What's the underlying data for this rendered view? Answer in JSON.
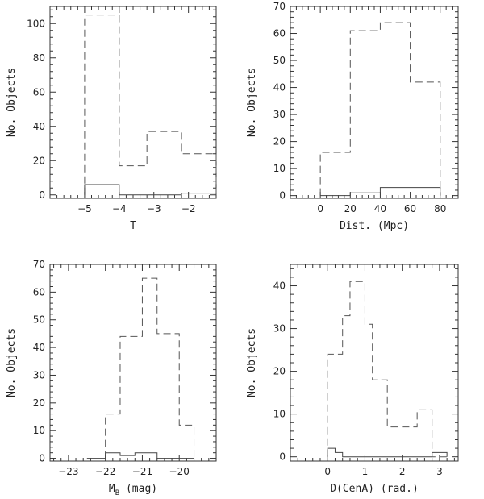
{
  "chart_data": [
    {
      "type": "histogram",
      "xlabel": "T",
      "ylabel": "No. Objects",
      "xlim": [
        -6,
        -1.2
      ],
      "ylim": [
        -2,
        110
      ],
      "xticks": [
        -5,
        -4,
        -3,
        -2
      ],
      "yticks": [
        0,
        20,
        40,
        60,
        80,
        100
      ],
      "series": [
        {
          "style": "dashed",
          "edges": [
            -5,
            -4,
            -3.2,
            -2.2,
            -1.2
          ],
          "counts": [
            105,
            17,
            37,
            24
          ]
        },
        {
          "style": "solid",
          "edges": [
            -5,
            -4,
            -2.2,
            -1.2
          ],
          "counts": [
            6,
            0,
            1
          ]
        }
      ]
    },
    {
      "type": "histogram",
      "xlabel": "Dist. (Mpc)",
      "ylabel": "No. Objects",
      "xlim": [
        -20,
        92
      ],
      "ylim": [
        -1,
        70
      ],
      "xticks": [
        0,
        20,
        40,
        60,
        80
      ],
      "yticks": [
        0,
        10,
        20,
        30,
        40,
        50,
        60,
        70
      ],
      "series": [
        {
          "style": "dashed",
          "edges": [
            0,
            20,
            40,
            60,
            80
          ],
          "counts": [
            16,
            61,
            64,
            42
          ]
        },
        {
          "style": "solid",
          "edges": [
            0,
            10,
            20,
            40,
            60,
            80
          ],
          "counts": [
            0,
            0,
            1,
            3,
            3
          ]
        }
      ]
    },
    {
      "type": "histogram",
      "xlabel_main": "M",
      "xlabel_sub": "B",
      "xlabel_tail": " (mag)",
      "ylabel": "No. Objects",
      "xlim": [
        -23.5,
        -19
      ],
      "ylim": [
        -1,
        70
      ],
      "xticks": [
        -23,
        -22,
        -21,
        -20
      ],
      "yticks": [
        0,
        10,
        20,
        30,
        40,
        50,
        60,
        70
      ],
      "series": [
        {
          "style": "dashed",
          "edges": [
            -22,
            -21.6,
            -21,
            -20.6,
            -20,
            -19.6
          ],
          "counts": [
            16,
            44,
            65,
            45,
            12
          ]
        },
        {
          "style": "solid",
          "edges": [
            -22.5,
            -22,
            -21.6,
            -21.2,
            -20.6,
            -20.2,
            -19.6
          ],
          "counts": [
            0,
            2,
            1,
            2,
            0,
            0
          ]
        }
      ]
    },
    {
      "type": "histogram",
      "xlabel": "D(CenA) (rad.)",
      "ylabel": "No. Objects",
      "xlim": [
        -1,
        3.5
      ],
      "ylim": [
        -1,
        45
      ],
      "xticks": [
        0,
        1,
        2,
        3
      ],
      "yticks": [
        0,
        10,
        20,
        30,
        40
      ],
      "series": [
        {
          "style": "dashed",
          "edges": [
            0,
            0.4,
            0.6,
            1.0,
            1.2,
            1.6,
            2.4,
            2.8,
            3.2
          ],
          "counts": [
            24,
            33,
            41,
            31,
            18,
            7,
            11,
            0
          ]
        },
        {
          "style": "solid",
          "edges": [
            0,
            0.2,
            0.4,
            0.6,
            2.6,
            2.8,
            3.2
          ],
          "counts": [
            2,
            1,
            0,
            0,
            0,
            1
          ]
        }
      ]
    }
  ]
}
